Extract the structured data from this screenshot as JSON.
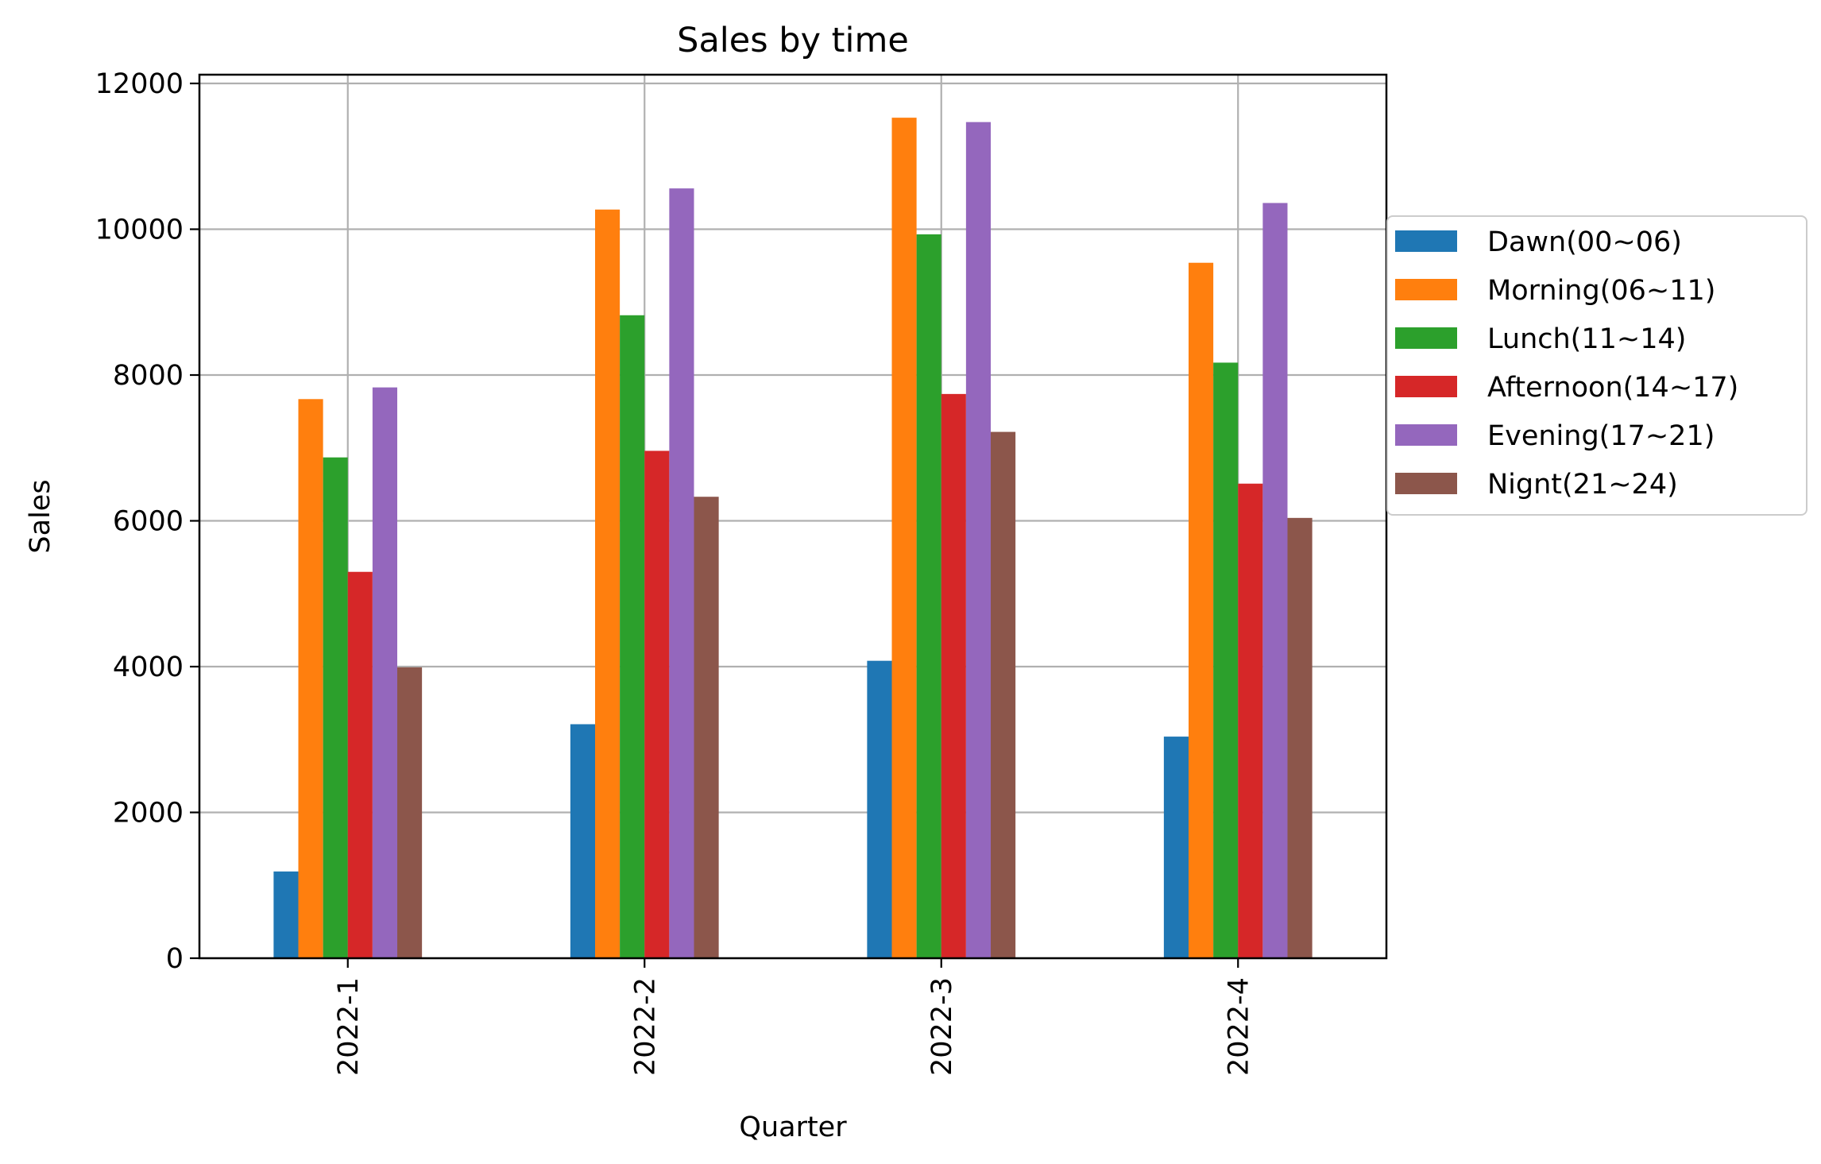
{
  "chart_data": {
    "type": "bar",
    "title": "Sales by time",
    "xlabel": "Quarter",
    "ylabel": "Sales",
    "categories": [
      "2022-1",
      "2022-2",
      "2022-3",
      "2022-4"
    ],
    "ylim": [
      0,
      12120
    ],
    "yticks": [
      0,
      2000,
      4000,
      6000,
      8000,
      10000,
      12000
    ],
    "ytick_labels": [
      "0",
      "2000",
      "4000",
      "6000",
      "8000",
      "10000",
      "12000"
    ],
    "grid": true,
    "legend_position": "right, outside plot",
    "series": [
      {
        "name": "Dawn(00~06)",
        "color": "#1f77b4",
        "values": [
          1190,
          3210,
          4080,
          3040
        ]
      },
      {
        "name": "Morning(06~11)",
        "color": "#ff7f0e",
        "values": [
          7670,
          10270,
          11530,
          9540
        ]
      },
      {
        "name": "Lunch(11~14)",
        "color": "#2ca02c",
        "values": [
          6870,
          8820,
          9930,
          8170
        ]
      },
      {
        "name": "Afternoon(14~17)",
        "color": "#d62728",
        "values": [
          5300,
          6960,
          7740,
          6510
        ]
      },
      {
        "name": "Evening(17~21)",
        "color": "#9467bd",
        "values": [
          7830,
          10560,
          11470,
          10360
        ]
      },
      {
        "name": "Nignt(21~24)",
        "color": "#8c564b",
        "values": [
          3990,
          6330,
          7220,
          6040
        ]
      }
    ]
  }
}
